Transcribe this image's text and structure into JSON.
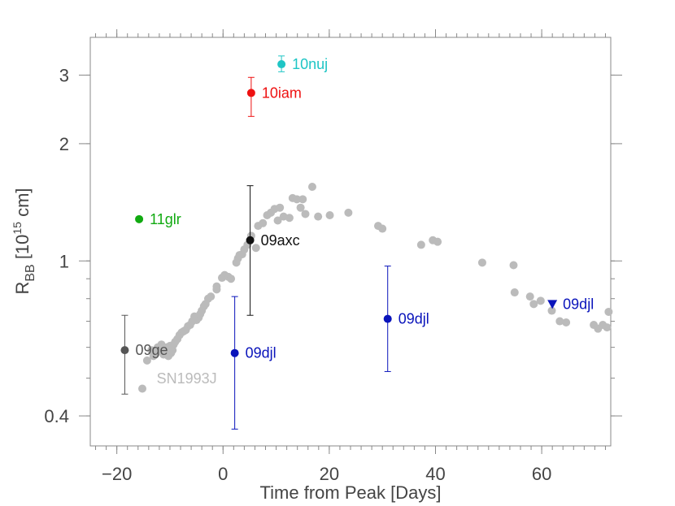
{
  "chart_data": {
    "type": "scatter",
    "title": "",
    "xlabel": "Time from Peak [Days]",
    "ylabel": {
      "main": "R",
      "sub": "BB",
      "unit_pre": " [10",
      "unit_sup": "15",
      "unit_post": " cm]"
    },
    "xlim": [
      -25,
      73
    ],
    "ylim": [
      0.335,
      3.75
    ],
    "yscale": "log",
    "x_ticks": [
      {
        "value": -20,
        "label": "−20"
      },
      {
        "value": 0,
        "label": "0"
      },
      {
        "value": 20,
        "label": "20"
      },
      {
        "value": 40,
        "label": "40"
      },
      {
        "value": 60,
        "label": "60"
      }
    ],
    "y_ticks": [
      {
        "value": 0.4,
        "label": "0.4"
      },
      {
        "value": 1,
        "label": "1"
      },
      {
        "value": 2,
        "label": "2"
      },
      {
        "value": 3,
        "label": "3"
      }
    ],
    "sn1993j": {
      "name": "SN1993J",
      "label": "SN1993J",
      "color": "#bbbbbb",
      "points": [
        [
          -15.2,
          0.47
        ],
        [
          -14.3,
          0.555
        ],
        [
          -13.5,
          0.59
        ],
        [
          -13.1,
          0.57
        ],
        [
          -12.6,
          0.58
        ],
        [
          -12.3,
          0.6
        ],
        [
          -11.9,
          0.59
        ],
        [
          -11.6,
          0.61
        ],
        [
          -11.2,
          0.575
        ],
        [
          -10.9,
          0.59
        ],
        [
          -10.6,
          0.6
        ],
        [
          -10.3,
          0.57
        ],
        [
          -10.0,
          0.605
        ],
        [
          -9.8,
          0.58
        ],
        [
          -9.5,
          0.59
        ],
        [
          -9.3,
          0.61
        ],
        [
          -9.0,
          0.62
        ],
        [
          -8.6,
          0.63
        ],
        [
          -8.2,
          0.645
        ],
        [
          -7.8,
          0.655
        ],
        [
          -7.4,
          0.66
        ],
        [
          -7.0,
          0.665
        ],
        [
          -6.6,
          0.68
        ],
        [
          -6.2,
          0.685
        ],
        [
          -5.8,
          0.7
        ],
        [
          -5.4,
          0.72
        ],
        [
          -5.0,
          0.705
        ],
        [
          -4.6,
          0.715
        ],
        [
          -4.3,
          0.73
        ],
        [
          -4.0,
          0.745
        ],
        [
          -3.6,
          0.765
        ],
        [
          -3.3,
          0.775
        ],
        [
          -2.8,
          0.8
        ],
        [
          -2.3,
          0.81
        ],
        [
          -1.2,
          0.845
        ],
        [
          -1.2,
          0.86
        ],
        [
          -0.2,
          0.905
        ],
        [
          0.3,
          0.92
        ],
        [
          1.0,
          0.91
        ],
        [
          1.5,
          0.9
        ],
        [
          2.5,
          0.99
        ],
        [
          2.8,
          1.015
        ],
        [
          3.1,
          1.035
        ],
        [
          3.6,
          1.04
        ],
        [
          4.0,
          1.07
        ],
        [
          4.6,
          1.1
        ],
        [
          5.3,
          1.16
        ],
        [
          6.2,
          1.08
        ],
        [
          6.6,
          1.23
        ],
        [
          7.5,
          1.25
        ],
        [
          8.3,
          1.31
        ],
        [
          9.0,
          1.33
        ],
        [
          9.7,
          1.36
        ],
        [
          10.3,
          1.27
        ],
        [
          10.7,
          1.37
        ],
        [
          11.4,
          1.3
        ],
        [
          12.5,
          1.29
        ],
        [
          13.1,
          1.45
        ],
        [
          13.9,
          1.44
        ],
        [
          14.6,
          1.37
        ],
        [
          15.0,
          1.44
        ],
        [
          15.5,
          1.32
        ],
        [
          16.8,
          1.55
        ],
        [
          17.9,
          1.3
        ],
        [
          20.1,
          1.31
        ],
        [
          23.6,
          1.33
        ],
        [
          29.2,
          1.23
        ],
        [
          30.0,
          1.21
        ],
        [
          37.3,
          1.1
        ],
        [
          39.5,
          1.13
        ],
        [
          40.4,
          1.12
        ],
        [
          48.8,
          0.99
        ],
        [
          54.7,
          0.975
        ],
        [
          54.9,
          0.83
        ],
        [
          57.8,
          0.81
        ],
        [
          58.5,
          0.775
        ],
        [
          59.8,
          0.79
        ],
        [
          61.9,
          0.745
        ],
        [
          63.4,
          0.7
        ],
        [
          64.6,
          0.695
        ],
        [
          69.8,
          0.685
        ],
        [
          70.6,
          0.67
        ],
        [
          71.5,
          0.685
        ],
        [
          72.3,
          0.675
        ],
        [
          72.6,
          0.74
        ]
      ]
    },
    "series": [
      {
        "name": "10nuj",
        "label": "10nuj",
        "color": "#1fc5c5",
        "x": 11.0,
        "y": 3.2,
        "yerr": [
          3.06,
          3.36
        ],
        "marker": "circle"
      },
      {
        "name": "10iam",
        "label": "10iam",
        "color": "#ee1111",
        "x": 5.3,
        "y": 2.7,
        "yerr": [
          2.35,
          2.96
        ],
        "marker": "circle"
      },
      {
        "name": "11glr",
        "label": "11glr",
        "color": "#11aa11",
        "x": -15.8,
        "y": 1.28,
        "yerr": null,
        "marker": "circle"
      },
      {
        "name": "09axc",
        "label": "09axc",
        "color": "#111111",
        "x": 5.1,
        "y": 1.13,
        "yerr": [
          0.725,
          1.56
        ],
        "marker": "circle"
      },
      {
        "name": "09ge",
        "label": "09ge",
        "color": "#555555",
        "x": -18.5,
        "y": 0.59,
        "yerr": [
          0.455,
          0.725
        ],
        "marker": "circle"
      },
      {
        "name": "09djl-early",
        "label": "09djl",
        "color": "#0a14bb",
        "x": 2.2,
        "y": 0.58,
        "yerr": [
          0.37,
          0.81
        ],
        "marker": "circle"
      },
      {
        "name": "09djl-mid",
        "label": "09djl",
        "color": "#0a14bb",
        "x": 31.0,
        "y": 0.71,
        "yerr": [
          0.52,
          0.97
        ],
        "marker": "circle"
      },
      {
        "name": "09djl-late",
        "label": "09djl",
        "color": "#0a14bb",
        "x": 62.0,
        "y": 0.775,
        "yerr": null,
        "marker": "triangle-down"
      }
    ]
  }
}
